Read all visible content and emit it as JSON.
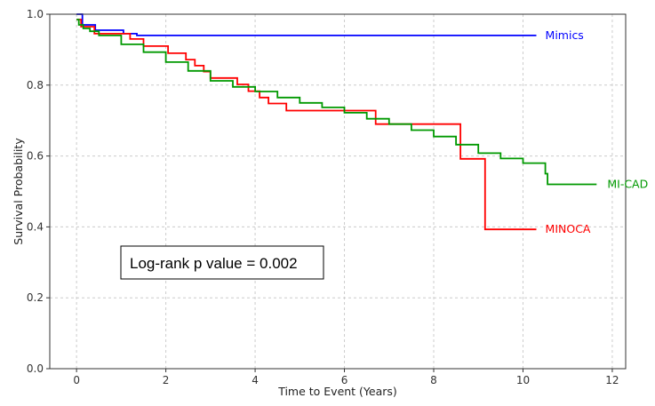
{
  "chart_data": {
    "type": "line",
    "subtype": "kaplan-meier step curves",
    "title": "",
    "xlabel": "Time to Event (Years)",
    "ylabel": "Survival Probability",
    "xlim": [
      -0.6,
      12.3
    ],
    "ylim": [
      0.0,
      1.0
    ],
    "xticks": [
      0,
      2,
      4,
      6,
      8,
      10,
      12
    ],
    "yticks": [
      0.0,
      0.2,
      0.4,
      0.6,
      0.8,
      1.0
    ],
    "xtick_labels": [
      "0",
      "2",
      "4",
      "6",
      "8",
      "10",
      "12"
    ],
    "ytick_labels": [
      "0.0",
      "0.2",
      "0.4",
      "0.6",
      "0.8",
      "1.0"
    ],
    "grid": true,
    "legend": "none (series labeled at line ends)",
    "annotation": "Log-rank p value = 0.002",
    "series": [
      {
        "name": "Mimics",
        "color": "#0000ff",
        "x": [
          0.0,
          0.13,
          0.42,
          1.05,
          1.35,
          10.3
        ],
        "y": [
          1.0,
          0.97,
          0.955,
          0.945,
          0.94,
          0.94
        ]
      },
      {
        "name": "MINOCA",
        "color": "#ff0000",
        "x": [
          0.0,
          0.1,
          0.4,
          1.2,
          1.5,
          2.05,
          2.45,
          2.65,
          2.85,
          3.0,
          3.6,
          3.85,
          4.1,
          4.3,
          4.7,
          6.7,
          8.6,
          9.15,
          10.3
        ],
        "y": [
          0.985,
          0.965,
          0.945,
          0.93,
          0.91,
          0.89,
          0.872,
          0.855,
          0.838,
          0.82,
          0.802,
          0.783,
          0.765,
          0.748,
          0.728,
          0.69,
          0.592,
          0.393,
          0.393
        ]
      },
      {
        "name": "MI-CAD",
        "color": "#009900",
        "x": [
          0.0,
          0.05,
          0.15,
          0.3,
          0.5,
          1.0,
          1.5,
          2.0,
          2.5,
          3.0,
          3.5,
          4.0,
          4.5,
          5.0,
          5.5,
          6.0,
          6.5,
          7.0,
          7.5,
          8.0,
          8.5,
          9.0,
          9.5,
          10.0,
          10.45,
          10.5,
          10.55,
          11.65
        ],
        "y": [
          0.985,
          0.97,
          0.96,
          0.952,
          0.94,
          0.915,
          0.893,
          0.865,
          0.84,
          0.812,
          0.795,
          0.782,
          0.765,
          0.75,
          0.737,
          0.722,
          0.705,
          0.69,
          0.673,
          0.655,
          0.632,
          0.608,
          0.593,
          0.58,
          0.58,
          0.55,
          0.52,
          0.52
        ]
      }
    ]
  }
}
